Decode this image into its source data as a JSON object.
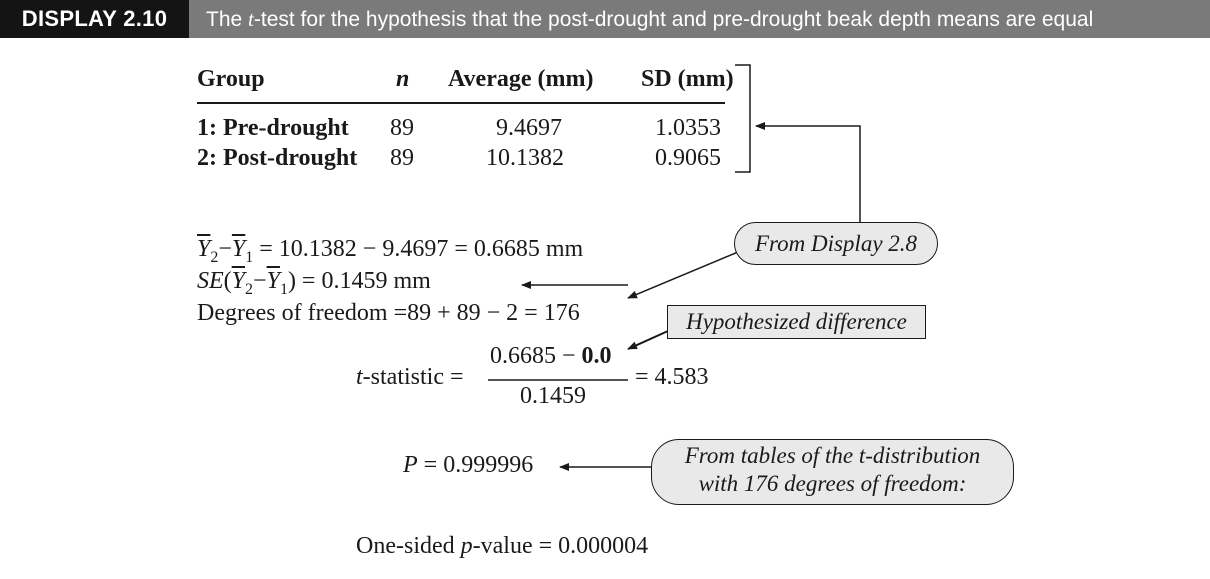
{
  "header": {
    "label": "DISPLAY 2.10",
    "title_pre": "The ",
    "title_t": "t",
    "title_post": "-test for the hypothesis that the post-drought and pre-drought beak depth means are equal"
  },
  "table": {
    "columns": [
      "Group",
      "n",
      "Average (mm)",
      "SD (mm)"
    ],
    "rows": [
      {
        "group": "1: Pre-drought",
        "n": "89",
        "average": "9.4697",
        "sd": "1.0353"
      },
      {
        "group": "2: Post-drought",
        "n": "89",
        "average": "10.1382",
        "sd": "0.9065"
      }
    ]
  },
  "callouts": {
    "from_display": "From Display 2.8",
    "hypothesized": "Hypothesized difference",
    "tables_line1": "From tables of the t-distribution",
    "tables_line2": "with 176 degrees of freedom:"
  },
  "calc": {
    "diff_Y": "Y",
    "diff_sub2": "2",
    "diff_minus": "−",
    "diff_sub1": "1",
    "diff_rest": " = 10.1382 − 9.4697 = 0.6685 mm",
    "se_label": "SE",
    "se_rest": ") = 0.1459 mm",
    "df_line": "Degrees of freedom =89 + 89 − 2 = 176",
    "t_label_t": "t",
    "t_label_rest": "-statistic =",
    "t_num_pre": "0.6685 − ",
    "t_num_bold": "0.0",
    "t_den": "0.1459",
    "t_result": "= 4.583",
    "p_label": "P",
    "p_rest": " = 0.999996",
    "one_sided_pre": "One-sided ",
    "one_sided_p": "p",
    "one_sided_rest": "-value = 0.000004"
  }
}
